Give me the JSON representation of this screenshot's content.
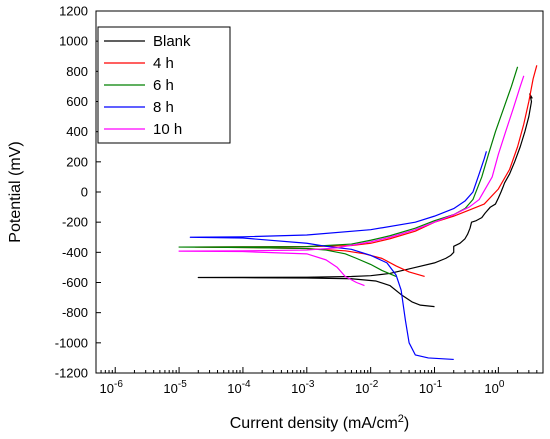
{
  "chart_data": {
    "type": "line",
    "title": "",
    "xlabel": "Current density (mA/cm",
    "xlabel_sup": "2",
    "xlabel_end": ")",
    "ylabel": "Potential (mV)",
    "x_scale": "log",
    "xlim": [
      5e-07,
      5
    ],
    "ylim": [
      -1200,
      1200
    ],
    "x_ticks": [
      {
        "value": 1e-06,
        "base": "10",
        "exp": "-6"
      },
      {
        "value": 1e-05,
        "base": "10",
        "exp": "-5"
      },
      {
        "value": 0.0001,
        "base": "10",
        "exp": "-4"
      },
      {
        "value": 0.001,
        "base": "10",
        "exp": "-3"
      },
      {
        "value": 0.01,
        "base": "10",
        "exp": "-2"
      },
      {
        "value": 0.1,
        "base": "10",
        "exp": "-1"
      },
      {
        "value": 1,
        "base": "10",
        "exp": "0"
      }
    ],
    "y_ticks": [
      "1200",
      "1000",
      "800",
      "600",
      "400",
      "200",
      "0",
      "-200",
      "-400",
      "-600",
      "-800",
      "-1000",
      "-1200"
    ],
    "grid": false,
    "legend_position": "top-left",
    "series": [
      {
        "name": "Blank",
        "color": "#000000",
        "points": [
          [
            0.1,
            -760
          ],
          [
            0.06,
            -750
          ],
          [
            0.045,
            -730
          ],
          [
            0.03,
            -680
          ],
          [
            0.02,
            -620
          ],
          [
            0.012,
            -590
          ],
          [
            0.005,
            -575
          ],
          [
            0.001,
            -570
          ],
          [
            0.0001,
            -568
          ],
          [
            2e-05,
            -567
          ],
          [
            0.0001,
            -566
          ],
          [
            0.001,
            -565
          ],
          [
            0.005,
            -560
          ],
          [
            0.01,
            -555
          ],
          [
            0.02,
            -540
          ],
          [
            0.05,
            -500
          ],
          [
            0.1,
            -470
          ],
          [
            0.15,
            -440
          ],
          [
            0.18,
            -420
          ],
          [
            0.2,
            -400
          ],
          [
            0.2,
            -360
          ],
          [
            0.25,
            -340
          ],
          [
            0.3,
            -310
          ],
          [
            0.33,
            -280
          ],
          [
            0.36,
            -240
          ],
          [
            0.38,
            -200
          ],
          [
            0.45,
            -190
          ],
          [
            0.55,
            -170
          ],
          [
            0.62,
            -140
          ],
          [
            0.75,
            -100
          ],
          [
            0.9,
            -80
          ],
          [
            1.0,
            -40
          ],
          [
            1.1,
            0
          ],
          [
            1.2,
            40
          ],
          [
            1.25,
            60
          ],
          [
            1.5,
            120
          ],
          [
            1.8,
            200
          ],
          [
            2.2,
            300
          ],
          [
            2.6,
            400
          ],
          [
            3.0,
            500
          ],
          [
            3.3,
            600
          ],
          [
            3.1,
            650
          ],
          [
            3.4,
            620
          ]
        ]
      },
      {
        "name": "4 h",
        "color": "#ff0000",
        "points": [
          [
            0.07,
            -560
          ],
          [
            0.04,
            -530
          ],
          [
            0.025,
            -490
          ],
          [
            0.015,
            -440
          ],
          [
            0.008,
            -410
          ],
          [
            0.004,
            -390
          ],
          [
            0.001,
            -375
          ],
          [
            0.0001,
            -368
          ],
          [
            1.8e-05,
            -365
          ],
          [
            0.0001,
            -364
          ],
          [
            0.001,
            -362
          ],
          [
            0.005,
            -355
          ],
          [
            0.01,
            -340
          ],
          [
            0.02,
            -310
          ],
          [
            0.05,
            -260
          ],
          [
            0.1,
            -200
          ],
          [
            0.2,
            -160
          ],
          [
            0.35,
            -120
          ],
          [
            0.6,
            -80
          ],
          [
            1.0,
            20
          ],
          [
            1.5,
            150
          ],
          [
            2.0,
            300
          ],
          [
            2.5,
            450
          ],
          [
            3.0,
            600
          ],
          [
            3.5,
            750
          ],
          [
            4.0,
            840
          ]
        ]
      },
      {
        "name": "6 h",
        "color": "#008000",
        "points": [
          [
            0.025,
            -560
          ],
          [
            0.015,
            -520
          ],
          [
            0.01,
            -480
          ],
          [
            0.006,
            -440
          ],
          [
            0.004,
            -410
          ],
          [
            0.002,
            -385
          ],
          [
            0.001,
            -375
          ],
          [
            0.0001,
            -368
          ],
          [
            1e-05,
            -365
          ],
          [
            0.0001,
            -364
          ],
          [
            0.001,
            -362
          ],
          [
            0.005,
            -345
          ],
          [
            0.01,
            -320
          ],
          [
            0.02,
            -290
          ],
          [
            0.05,
            -240
          ],
          [
            0.1,
            -190
          ],
          [
            0.2,
            -150
          ],
          [
            0.3,
            -110
          ],
          [
            0.4,
            -50
          ],
          [
            0.55,
            100
          ],
          [
            0.7,
            250
          ],
          [
            0.9,
            400
          ],
          [
            1.2,
            550
          ],
          [
            1.6,
            700
          ],
          [
            2.0,
            830
          ]
        ]
      },
      {
        "name": "8 h",
        "color": "#0000ff",
        "points": [
          [
            0.2,
            -1110
          ],
          [
            0.08,
            -1100
          ],
          [
            0.05,
            -1080
          ],
          [
            0.04,
            -1000
          ],
          [
            0.035,
            -850
          ],
          [
            0.03,
            -650
          ],
          [
            0.025,
            -550
          ],
          [
            0.018,
            -470
          ],
          [
            0.01,
            -420
          ],
          [
            0.005,
            -380
          ],
          [
            0.002,
            -360
          ],
          [
            0.001,
            -340
          ],
          [
            0.0001,
            -305
          ],
          [
            1.5e-05,
            -300
          ],
          [
            0.0001,
            -297
          ],
          [
            0.001,
            -285
          ],
          [
            0.01,
            -250
          ],
          [
            0.05,
            -200
          ],
          [
            0.1,
            -160
          ],
          [
            0.2,
            -110
          ],
          [
            0.3,
            -60
          ],
          [
            0.4,
            0
          ],
          [
            0.5,
            120
          ],
          [
            0.6,
            220
          ],
          [
            0.65,
            270
          ]
        ]
      },
      {
        "name": "10 h",
        "color": "#ff00ff",
        "points": [
          [
            0.008,
            -620
          ],
          [
            0.006,
            -600
          ],
          [
            0.004,
            -560
          ],
          [
            0.003,
            -500
          ],
          [
            0.002,
            -450
          ],
          [
            0.001,
            -410
          ],
          [
            0.0001,
            -395
          ],
          [
            1e-05,
            -392
          ],
          [
            0.0001,
            -390
          ],
          [
            0.001,
            -385
          ],
          [
            0.003,
            -370
          ],
          [
            0.01,
            -330
          ],
          [
            0.02,
            -300
          ],
          [
            0.05,
            -250
          ],
          [
            0.1,
            -200
          ],
          [
            0.2,
            -150
          ],
          [
            0.35,
            -100
          ],
          [
            0.5,
            -50
          ],
          [
            0.8,
            100
          ],
          [
            1.0,
            250
          ],
          [
            1.3,
            400
          ],
          [
            1.7,
            550
          ],
          [
            2.2,
            700
          ],
          [
            2.5,
            770
          ]
        ]
      }
    ]
  }
}
